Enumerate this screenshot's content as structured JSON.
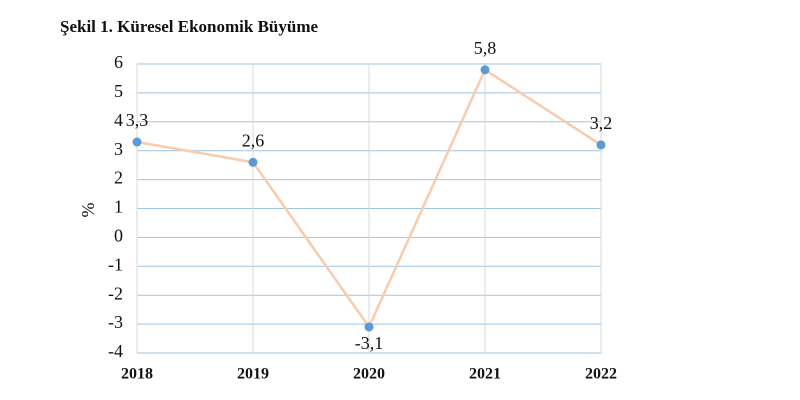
{
  "chart_data": {
    "type": "line",
    "title": "Şekil 1. Küresel Ekonomik Büyüme",
    "y_label": "%",
    "categories": [
      "2018",
      "2019",
      "2020",
      "2021",
      "2022"
    ],
    "values": [
      3.3,
      2.6,
      -3.1,
      5.8,
      3.2
    ],
    "value_labels": [
      "3,3",
      "2,6",
      "-3,1",
      "5,8",
      "3,2"
    ],
    "line_color": "#f8cbad",
    "marker_color": "#5b9bd5",
    "ylim": [
      -4,
      6
    ],
    "yticks": [
      -4,
      -3,
      -2,
      -1,
      0,
      1,
      2,
      3,
      4,
      5,
      6
    ],
    "grid": true
  }
}
